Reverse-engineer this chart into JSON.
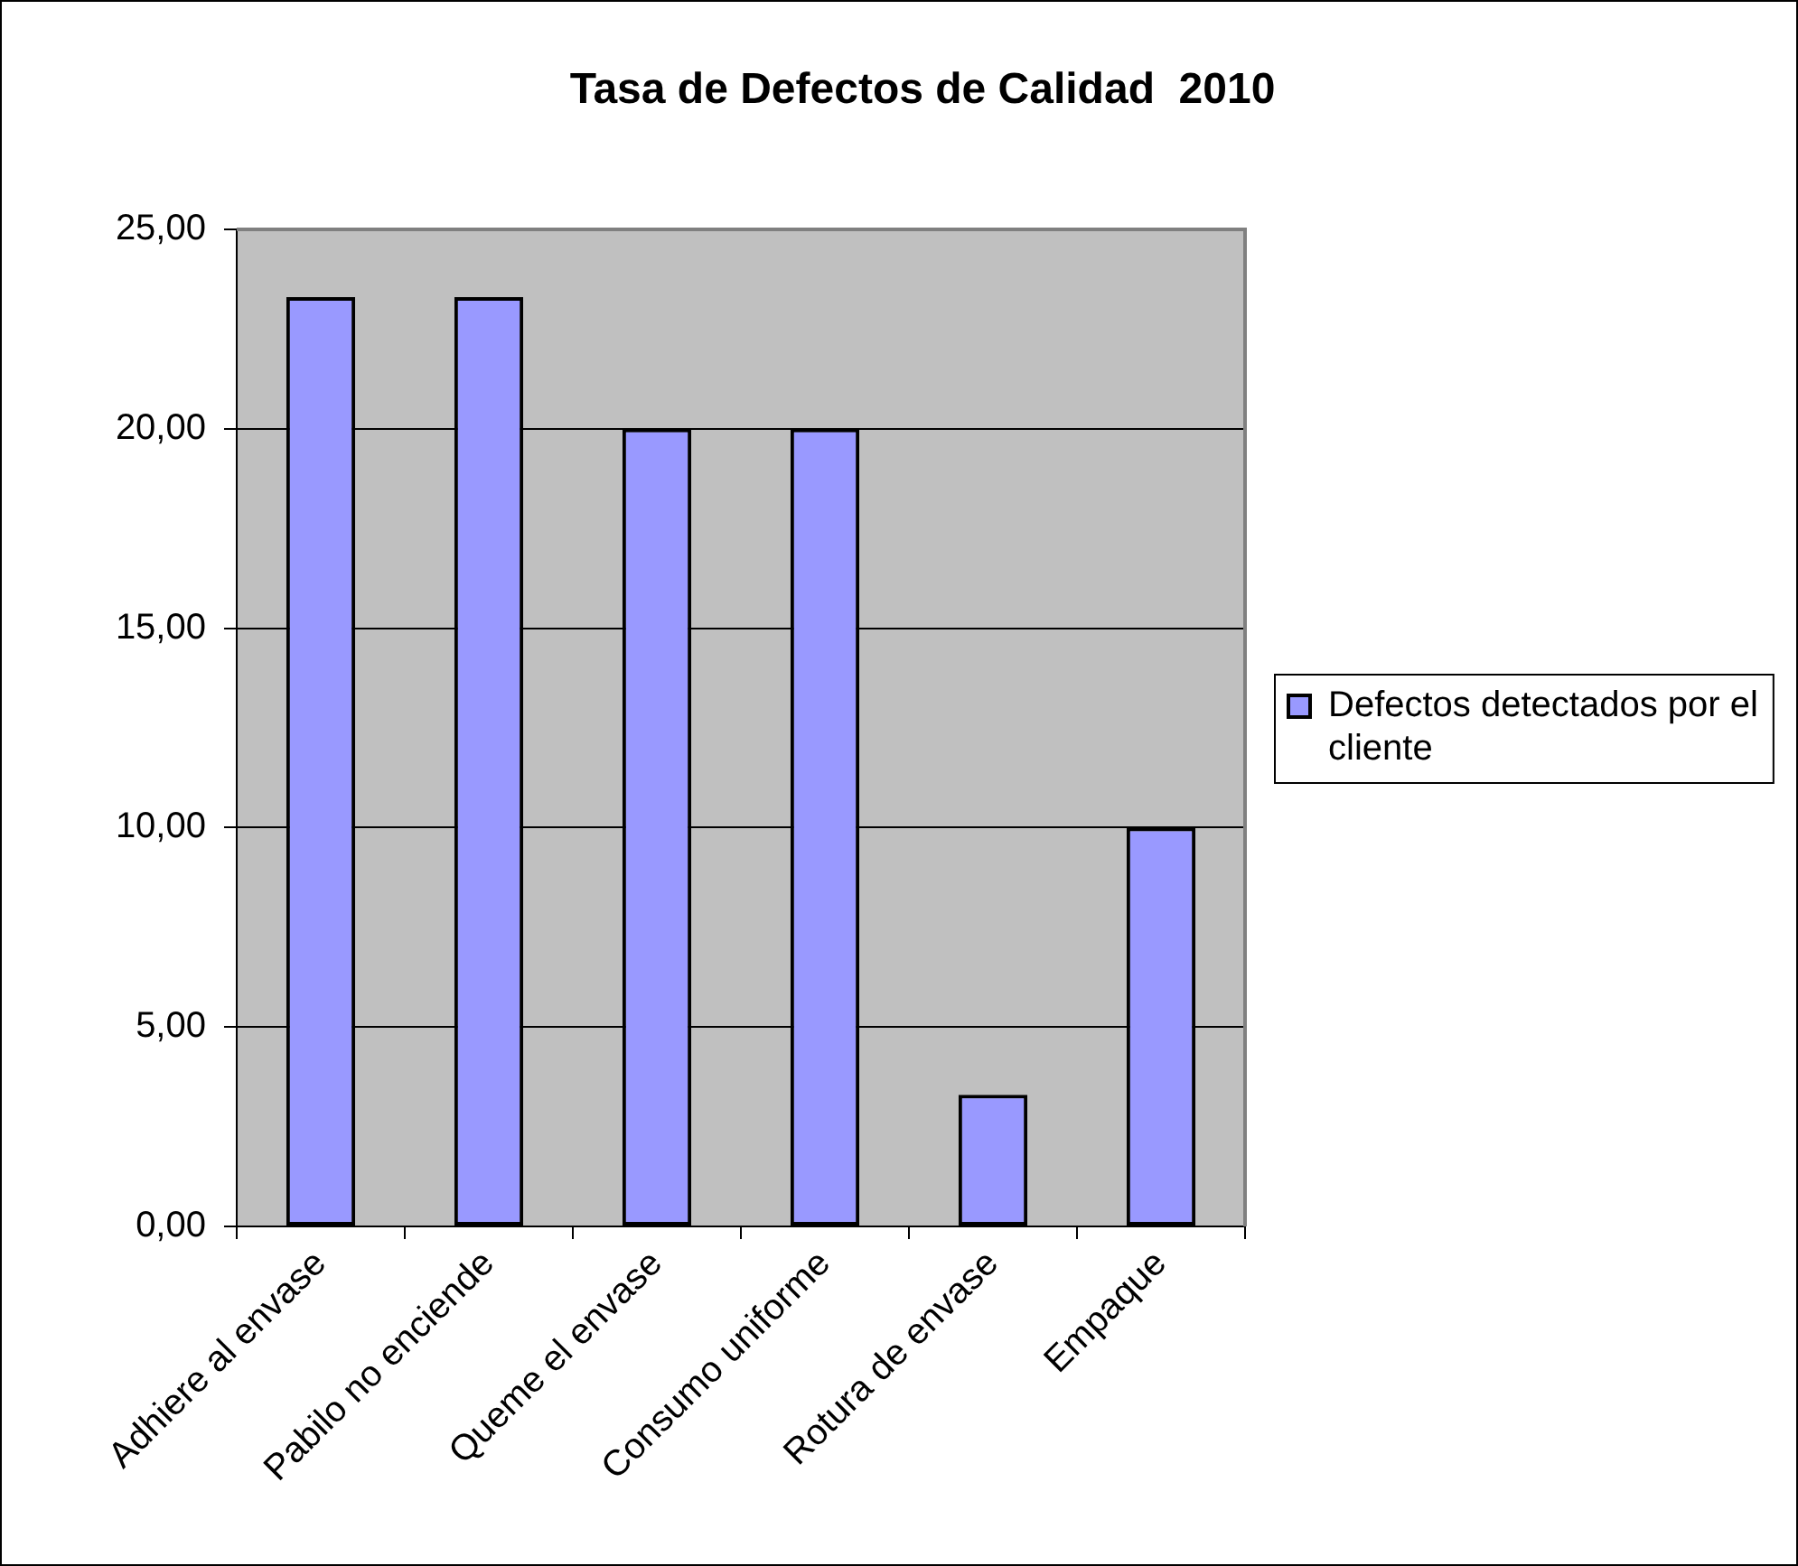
{
  "chart_data": {
    "type": "bar",
    "title": "Tasa de Defectos de Calidad  2010",
    "categories": [
      "Adhiere al envase",
      "Pabilo no enciende",
      "Queme el envase",
      "Consumo uniforme",
      "Rotura de envase",
      "Empaque"
    ],
    "series": [
      {
        "name": "Defectos detectados por el cliente",
        "color": "#9999ff",
        "values": [
          23.3,
          23.3,
          20,
          20,
          3.3,
          10
        ]
      }
    ],
    "ylim": [
      0,
      25
    ],
    "yticks": [
      {
        "value": 0,
        "label": "0,00"
      },
      {
        "value": 5,
        "label": "5,00"
      },
      {
        "value": 10,
        "label": "10,00"
      },
      {
        "value": 15,
        "label": "15,00"
      },
      {
        "value": 20,
        "label": "20,00"
      },
      {
        "value": 25,
        "label": "25,00"
      }
    ],
    "grid": "y",
    "legend": "right"
  }
}
